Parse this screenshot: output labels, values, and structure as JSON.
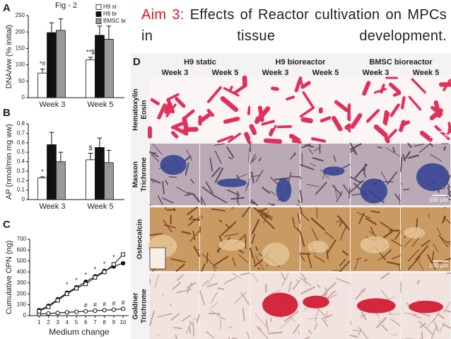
{
  "slide": {
    "fig_label": "Fig - 2",
    "title_lead": "Aim 3:",
    "title": "Effects of Reactor cultivation on MPCs in tissue development."
  },
  "panel_labels": [
    "A",
    "B",
    "C",
    "D"
  ],
  "chart_data": [
    {
      "type": "bar",
      "ylabel": "DNA/ww (% initial)",
      "categories": [
        "Week 3",
        "Week 5"
      ],
      "series": [
        {
          "name": "H9 st",
          "color": "#ffffff",
          "values": [
            75,
            115
          ],
          "errors": [
            12,
            8
          ]
        },
        {
          "name": "H9 br",
          "color": "#111111",
          "values": [
            198,
            190
          ],
          "errors": [
            30,
            28
          ]
        },
        {
          "name": "BMSC br",
          "color": "#999999",
          "values": [
            205,
            178
          ],
          "errors": [
            35,
            40
          ]
        }
      ],
      "annotations": [
        {
          "text": "*#",
          "category": 0,
          "series": 0
        },
        {
          "text": "**$",
          "category": 1,
          "series": 0
        }
      ],
      "ylim": [
        0,
        250
      ],
      "yticks": [
        0,
        50,
        100,
        150,
        200,
        250
      ],
      "legend": "upper right"
    },
    {
      "type": "bar",
      "ylabel": "AP (nmol/min mg ww)",
      "categories": [
        "Week 3",
        "Week 5"
      ],
      "series": [
        {
          "name": "H9 st",
          "color": "#ffffff",
          "values": [
            0.23,
            0.42
          ],
          "errors": [
            0.01,
            0.07
          ]
        },
        {
          "name": "H9 br",
          "color": "#111111",
          "values": [
            0.58,
            0.55
          ],
          "errors": [
            0.13,
            0.1
          ]
        },
        {
          "name": "BMSC br",
          "color": "#999999",
          "values": [
            0.4,
            0.39
          ],
          "errors": [
            0.1,
            0.13
          ]
        }
      ],
      "annotations": [
        {
          "text": "*",
          "category": 0,
          "series": 0
        },
        {
          "text": "$",
          "category": 1,
          "series": 0
        }
      ],
      "ylim": [
        0,
        0.8
      ],
      "yticks": [
        0,
        0.1,
        0.2,
        0.3,
        0.4,
        0.5,
        0.6,
        0.7,
        0.8
      ]
    },
    {
      "type": "line",
      "xlabel": "Medium change",
      "ylabel": "Cumulative OPN (ng)",
      "x": [
        1,
        2,
        3,
        4,
        5,
        6,
        7,
        8,
        9,
        10
      ],
      "series": [
        {
          "name": "H9 st",
          "color": "#ffffff",
          "marker": "circle",
          "values": [
            15,
            20,
            25,
            30,
            35,
            40,
            45,
            50,
            55,
            62
          ]
        },
        {
          "name": "H9 br",
          "color": "#111111",
          "marker": "circle",
          "values": [
            50,
            90,
            150,
            210,
            260,
            310,
            360,
            410,
            450,
            480
          ]
        },
        {
          "name": "BMSC br",
          "color": "#ffffff",
          "marker": "square",
          "values": [
            40,
            80,
            140,
            200,
            250,
            290,
            350,
            400,
            470,
            560
          ]
        }
      ],
      "annotations": [
        {
          "text": "*",
          "x": 4,
          "y": 280
        },
        {
          "text": "*",
          "x": 5,
          "y": 320
        },
        {
          "text": "*",
          "x": 6,
          "y": 370
        },
        {
          "text": "*",
          "x": 7,
          "y": 420
        },
        {
          "text": "*",
          "x": 8,
          "y": 470
        },
        {
          "text": "*",
          "x": 9,
          "y": 530
        },
        {
          "text": "#",
          "x": 6,
          "y": 90
        },
        {
          "text": "#",
          "x": 7,
          "y": 95
        },
        {
          "text": "#",
          "x": 8,
          "y": 100
        },
        {
          "text": "#",
          "x": 9,
          "y": 105
        },
        {
          "text": "#",
          "x": 10,
          "y": 115
        }
      ],
      "xlim": [
        0,
        10.6
      ],
      "xticks": [
        1,
        2,
        3,
        4,
        5,
        6,
        7,
        8,
        9,
        10
      ],
      "ylim": [
        0,
        700
      ],
      "yticks": [
        0,
        100,
        200,
        300,
        400,
        500,
        600,
        700
      ]
    }
  ],
  "histology": {
    "groups": [
      "H9 static",
      "H9 bioreactor",
      "BMSC bioreactor"
    ],
    "weeks": [
      "Week 3",
      "Week 5",
      "Week 3",
      "Week 5",
      "Week 3",
      "Week 5"
    ],
    "stains": [
      [
        "Hematoxylin",
        "Eosin"
      ],
      [
        "Masson",
        "Trichrome"
      ],
      [
        "Osteocalcin"
      ],
      [
        "Goldner",
        "Trichrome"
      ]
    ],
    "scale_labels": [
      "100 µm",
      "100 µm",
      "100 µm"
    ]
  }
}
